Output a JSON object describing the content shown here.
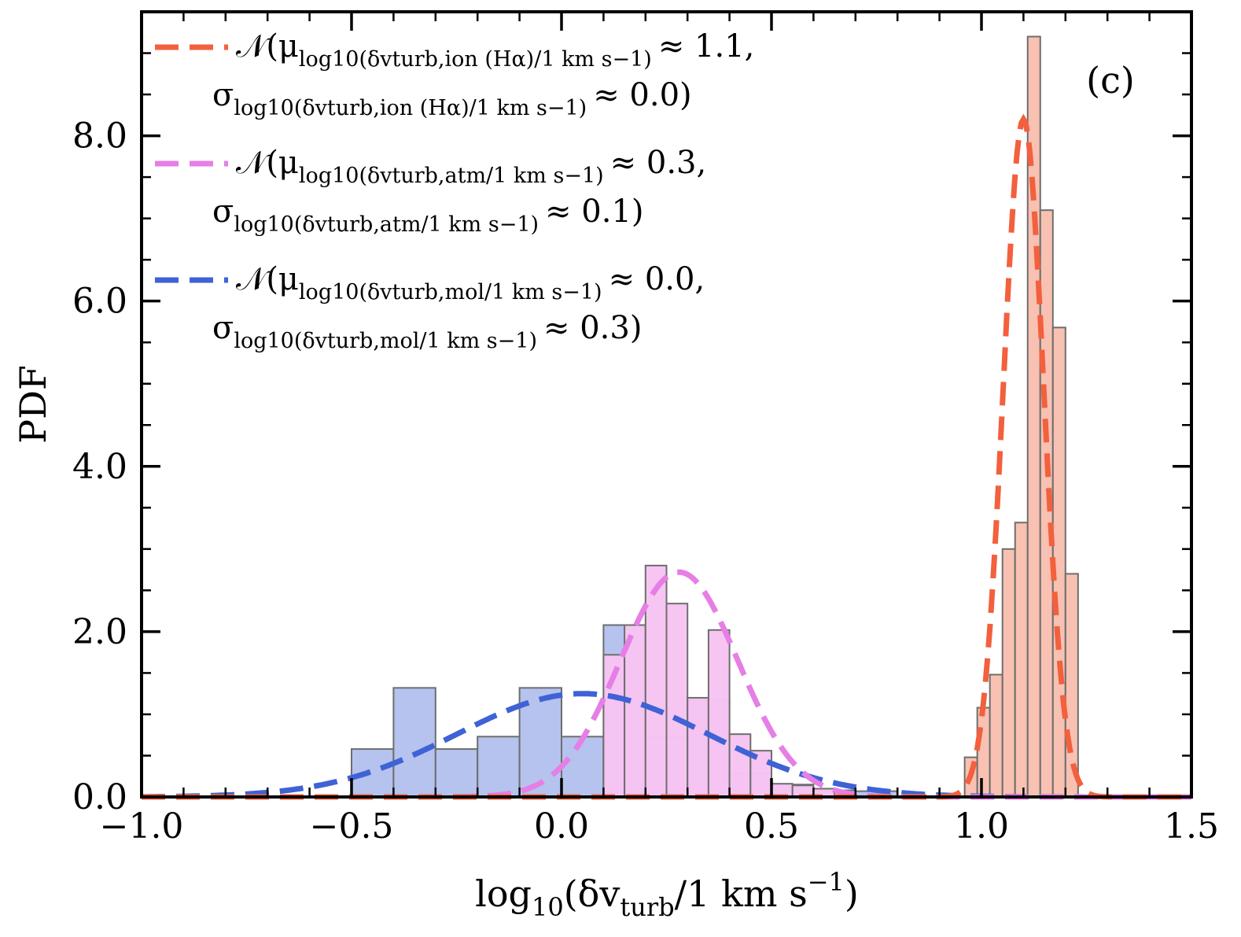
{
  "chart_data": {
    "type": "histogram",
    "panel_label": "(c)",
    "xlabel": "log10(δvturb/1 km s−1)",
    "xlabel_parts": {
      "pre": "log",
      "sub10": "10",
      "mid": "(δv",
      "subturb": "turb",
      "post": "/1 km s",
      "sup": "−1",
      "close": ")"
    },
    "ylabel": "PDF",
    "xlim": [
      -1.0,
      1.5
    ],
    "ylim": [
      0.0,
      9.5
    ],
    "xticks": [
      -1.0,
      -0.5,
      0.0,
      0.5,
      1.0,
      1.5
    ],
    "xtick_labels": [
      "−1.0",
      "−0.5",
      "0.0",
      "0.5",
      "1.0",
      "1.5"
    ],
    "yticks": [
      0.0,
      2.0,
      4.0,
      6.0,
      8.0
    ],
    "ytick_labels": [
      "0.0",
      "2.0",
      "4.0",
      "6.0",
      "8.0"
    ],
    "series": [
      {
        "name": "mol",
        "fill": "#b4c2ee",
        "line": "#3f62d6",
        "bin_edges": [
          -0.5,
          -0.4,
          -0.3,
          -0.2,
          -0.1,
          0.0,
          0.1,
          0.2,
          0.3,
          0.4,
          0.5,
          0.6,
          0.7,
          0.8
        ],
        "density": [
          0.58,
          1.32,
          0.58,
          0.73,
          1.32,
          0.73,
          2.08,
          0.73,
          1.17,
          0.29,
          0.15,
          0.07,
          0.07
        ],
        "fit": {
          "mu": 0.05,
          "sigma": 0.3,
          "amplitude": 1.25
        },
        "legend_mu": "𝒩(μ",
        "legend_mu_sub": "log10(δvturb,mol/1 km s−1)",
        "legend_mu_val": "≈ 0.0,",
        "legend_sigma": "σ",
        "legend_sigma_sub": "log10(δvturb,mol/1 km s−1)",
        "legend_sigma_val": "≈ 0.3)"
      },
      {
        "name": "atm",
        "fill": "#f6c4f2",
        "line": "#e67ee6",
        "bin_edges": [
          0.1,
          0.15,
          0.2,
          0.25,
          0.3,
          0.35,
          0.4,
          0.45,
          0.5,
          0.55,
          0.6,
          0.65,
          0.7
        ],
        "density": [
          1.72,
          2.08,
          2.8,
          2.34,
          1.2,
          2.02,
          0.76,
          0.56,
          0.16,
          0.14,
          0.1,
          0.08
        ],
        "fit": {
          "mu": 0.28,
          "sigma": 0.14,
          "amplitude": 2.72
        },
        "legend_mu": "𝒩(μ",
        "legend_mu_sub": "log10(δvturb,atm/1 km s−1)",
        "legend_mu_val": "≈ 0.3,",
        "legend_sigma": "σ",
        "legend_sigma_sub": "log10(δvturb,atm/1 km s−1)",
        "legend_sigma_val": "≈ 0.1)"
      },
      {
        "name": "ion (Hα)",
        "fill": "#f8c0b0",
        "line": "#f2603e",
        "bin_edges": [
          0.96,
          0.99,
          1.02,
          1.05,
          1.08,
          1.11,
          1.14,
          1.17,
          1.2,
          1.23
        ],
        "density": [
          0.48,
          1.08,
          1.48,
          3.0,
          3.32,
          9.2,
          7.1,
          5.68,
          2.7
        ],
        "fit": {
          "mu": 1.1,
          "sigma": 0.048,
          "amplitude": 8.2
        },
        "legend_mu": "𝒩(μ",
        "legend_mu_sub": "log10(δvturb,ion (Hα)/1 km s−1)",
        "legend_mu_val": "≈ 1.1,",
        "legend_sigma": "σ",
        "legend_sigma_sub": "log10(δvturb,ion (Hα)/1 km s−1)",
        "legend_sigma_val": "≈ 0.0)"
      }
    ],
    "legend_order": [
      "ion (Hα)",
      "atm",
      "mol"
    ],
    "legend_location": "top-left"
  }
}
